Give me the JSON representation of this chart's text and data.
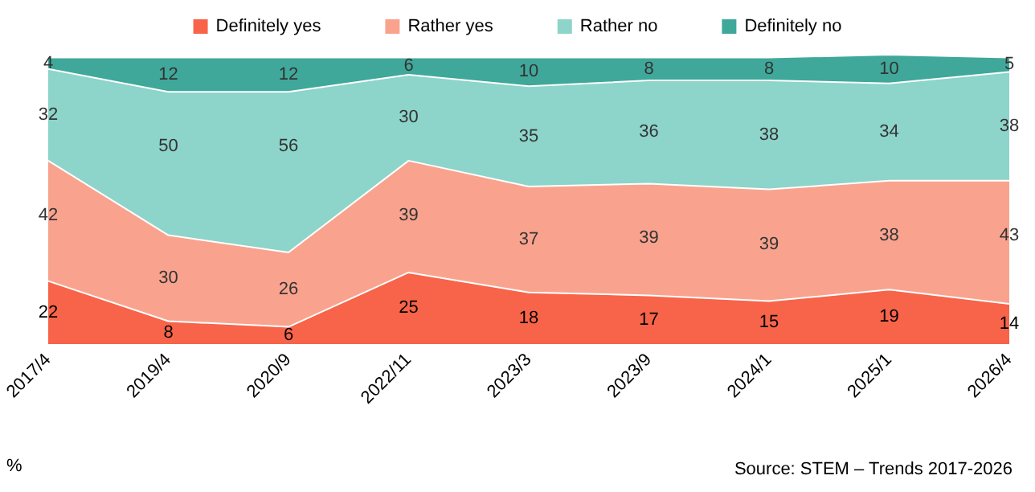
{
  "chart_data": {
    "type": "area",
    "stacked": true,
    "categories": [
      "2017/4",
      "2019/4",
      "2020/9",
      "2022/11",
      "2023/3",
      "2023/9",
      "2024/1",
      "2025/1",
      "2026/4"
    ],
    "series": [
      {
        "name": "Definitely yes",
        "color": "#f7644a",
        "values": [
          22,
          8,
          6,
          25,
          18,
          17,
          15,
          19,
          14
        ]
      },
      {
        "name": "Rather yes",
        "color": "#f9a38f",
        "values": [
          42,
          30,
          26,
          39,
          37,
          39,
          39,
          38,
          43
        ]
      },
      {
        "name": "Rather no",
        "color": "#8dd4ca",
        "values": [
          32,
          50,
          56,
          30,
          35,
          36,
          38,
          34,
          38
        ]
      },
      {
        "name": "Definitely no",
        "color": "#3fa89a",
        "values": [
          4,
          12,
          12,
          6,
          10,
          8,
          8,
          10,
          5
        ]
      }
    ],
    "data_labels": true,
    "legend": "top",
    "grid": false,
    "tick_labels": "x",
    "annotations": [
      "%",
      "Source: STEM – Trends 2017-2026"
    ]
  }
}
